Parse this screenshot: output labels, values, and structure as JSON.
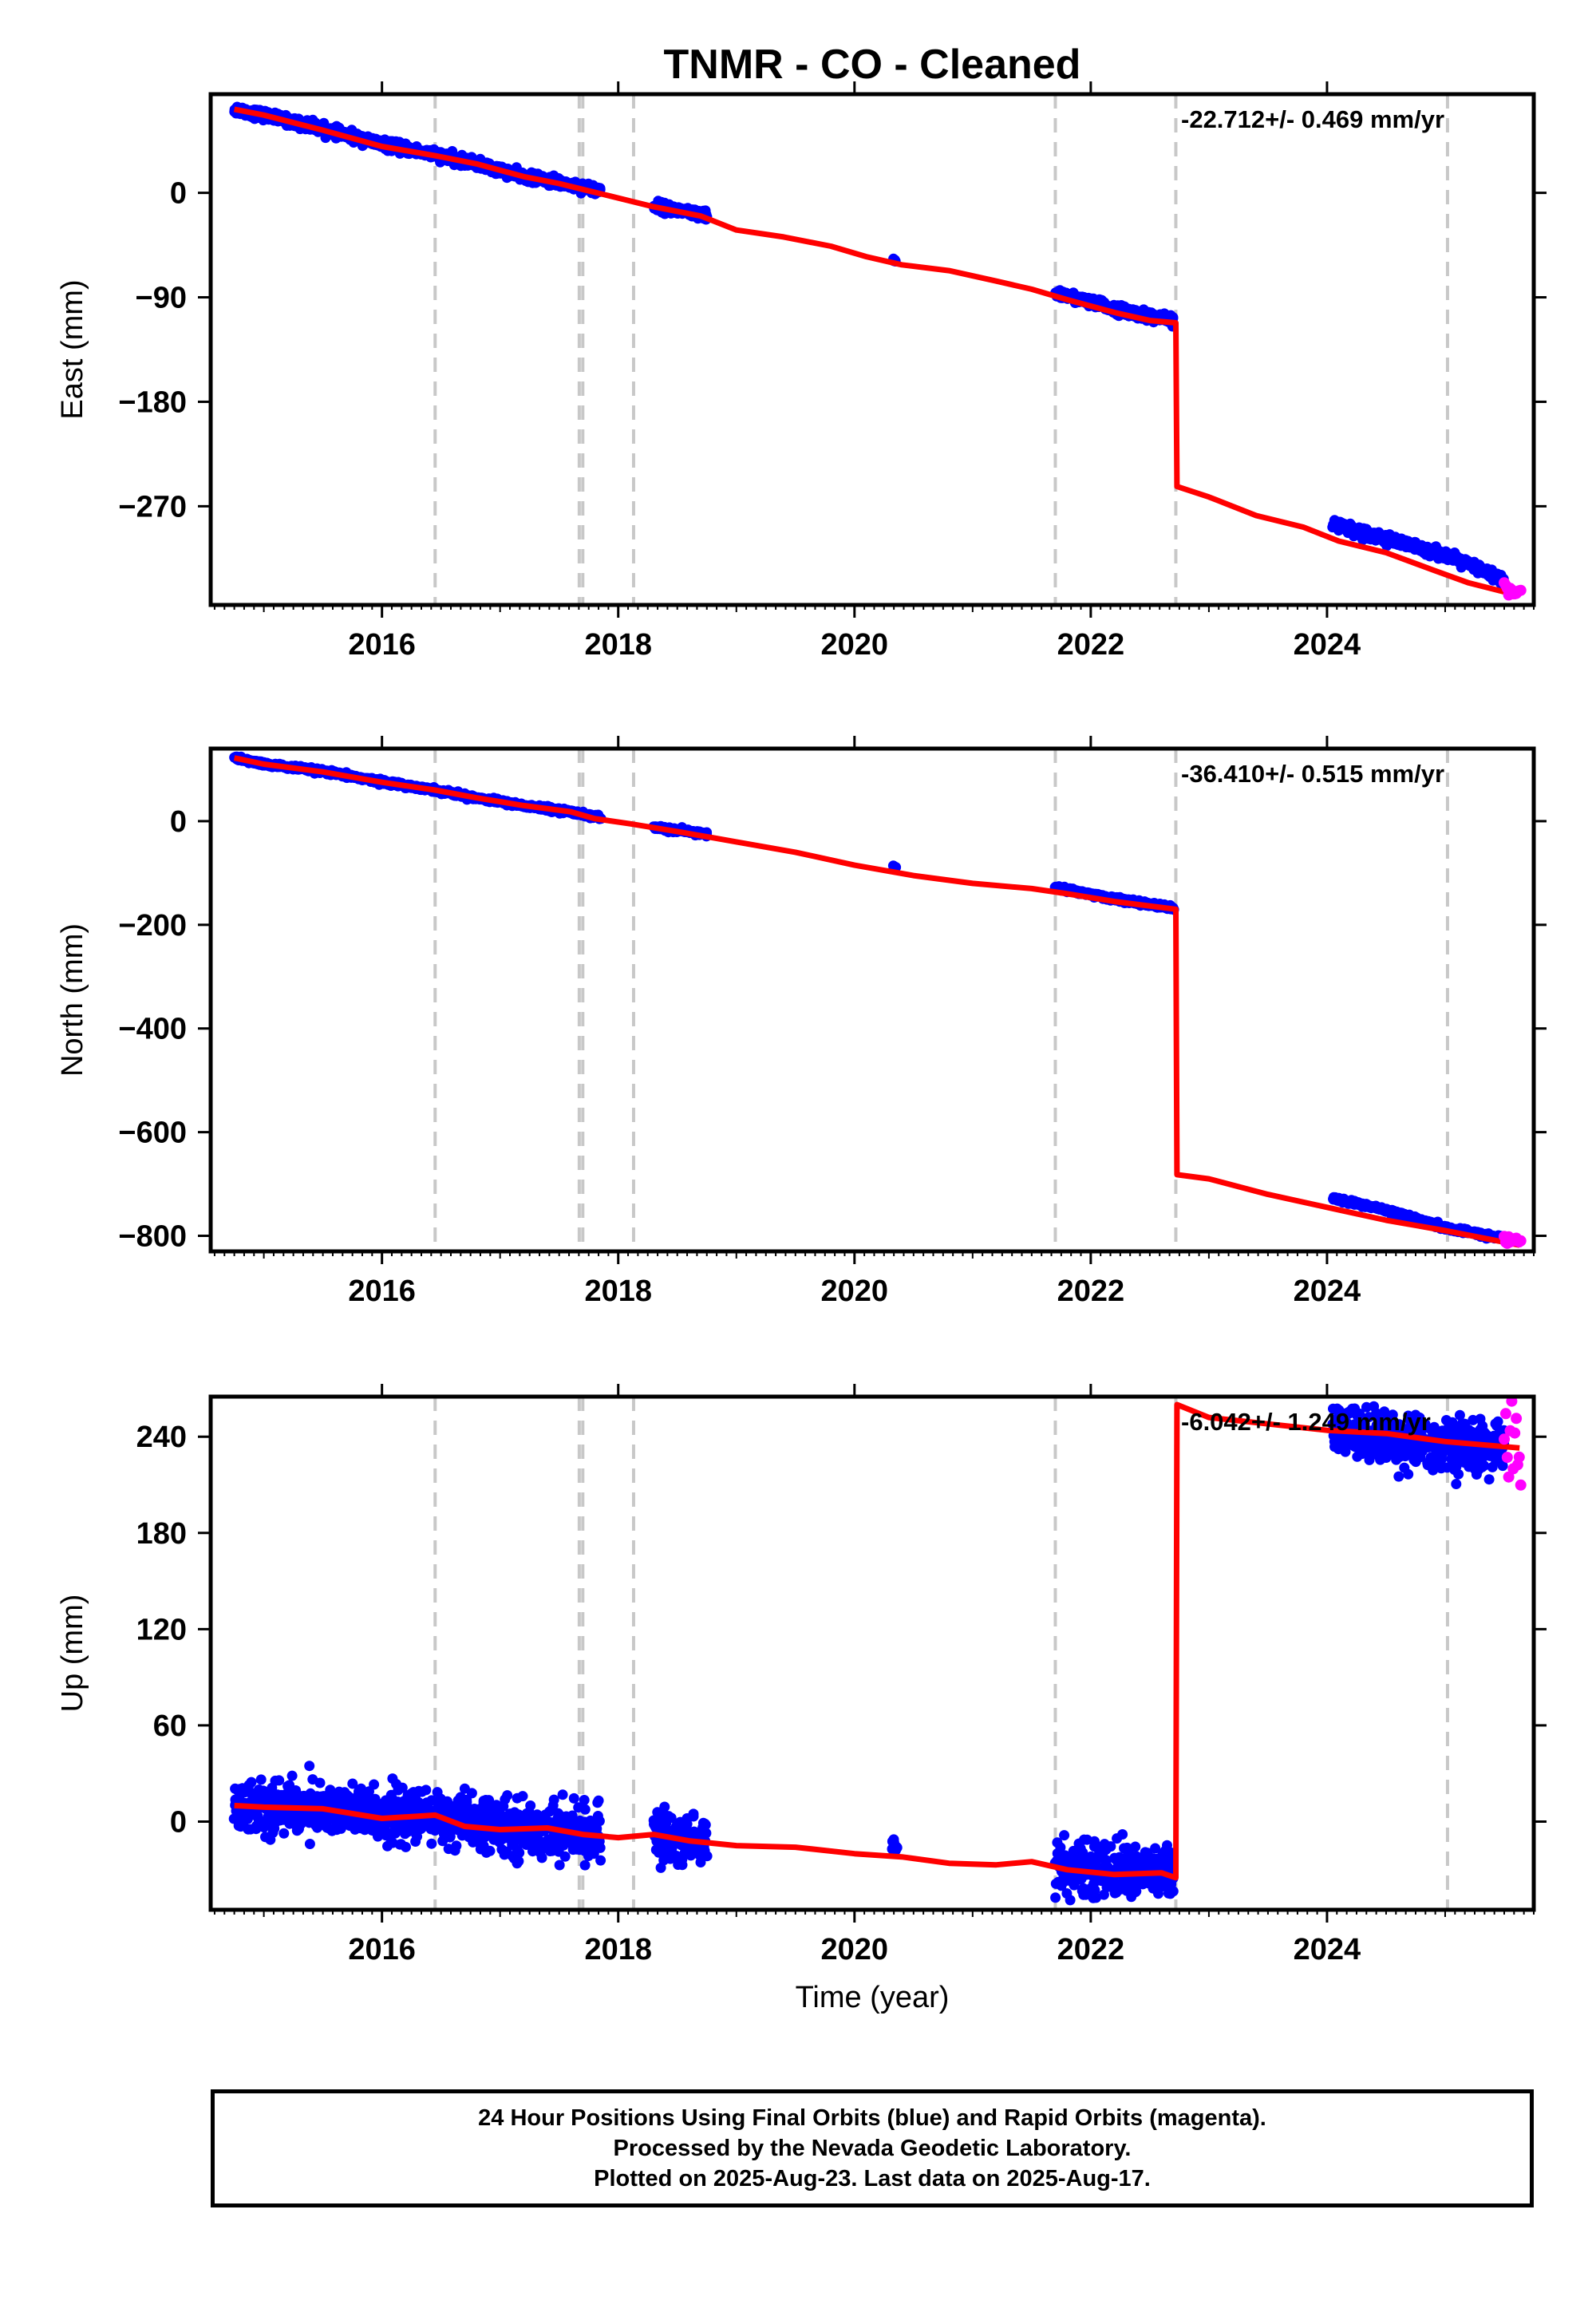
{
  "title": "TNMR  - CO - Cleaned",
  "colors": {
    "final": "#0000ff",
    "rapid": "#ff00ff",
    "model": "#ff0000",
    "breaks": "#c8c8c8",
    "frame": "#000000"
  },
  "x_axis": {
    "label": "Time (year)",
    "range": [
      2014.55,
      2025.75
    ],
    "tick_labels": [
      "2016",
      "2018",
      "2020",
      "2022",
      "2024"
    ]
  },
  "breaks": [
    2016.45,
    2017.67,
    2017.7,
    2018.13,
    2021.7,
    2022.72,
    2025.02
  ],
  "chart_data": [
    {
      "type": "scatter",
      "component": "east",
      "ylabel": "East (mm)",
      "rate_text": "-22.712+/- 0.469 mm/yr",
      "ylim": [
        -355,
        85
      ],
      "yticks": [
        0,
        -90,
        -180,
        -270
      ],
      "ytick_labels": [
        "0",
        "−90",
        "−180",
        "−270"
      ],
      "model": {
        "x": [
          2014.75,
          2015.0,
          2015.5,
          2016.0,
          2016.45,
          2016.8,
          2017.2,
          2017.5,
          2017.7,
          2017.9,
          2018.3,
          2018.7,
          2019.0,
          2019.4,
          2019.8,
          2020.1,
          2020.4,
          2020.8,
          2021.2,
          2021.5,
          2021.8,
          2022.2,
          2022.5,
          2022.72,
          2022.73,
          2023.0,
          2023.4,
          2023.8,
          2024.1,
          2024.5,
          2024.9,
          2025.2,
          2025.55
        ],
        "y": [
          72,
          67,
          54,
          40,
          32,
          25,
          14,
          8,
          3,
          -2,
          -12,
          -20,
          -32,
          -38,
          -46,
          -55,
          -62,
          -67,
          -76,
          -83,
          -92,
          -103,
          -110,
          -112,
          -253,
          -262,
          -278,
          -288,
          -300,
          -310,
          -325,
          -336,
          -345
        ]
      },
      "final": {
        "segments": [
          {
            "x": [
              2014.75,
              2015.0,
              2015.5,
              2016.0,
              2016.45,
              2016.8,
              2017.2,
              2017.5,
              2017.85
            ],
            "y": [
              72,
              67,
              55,
              42,
              33,
              25,
              14,
              9,
              2
            ],
            "scatter": 4
          },
          {
            "x": [
              2018.3,
              2018.75
            ],
            "y": [
              -11,
              -20
            ],
            "scatter": 4
          },
          {
            "x": [
              2020.33,
              2020.35
            ],
            "y": [
              -58,
              -59
            ],
            "scatter": 2
          },
          {
            "x": [
              2021.7,
              2022.2,
              2022.7
            ],
            "y": [
              -86,
              -100,
              -110
            ],
            "scatter": 4
          },
          {
            "x": [
              2024.05,
              2024.5,
              2025.0,
              2025.5
            ],
            "y": [
              -285,
              -298,
              -312,
              -333
            ],
            "scatter": 4
          }
        ]
      },
      "rapid": {
        "x": [
          2025.5,
          2025.64
        ],
        "y": [
          -338,
          -344
        ],
        "scatter": 6
      }
    },
    {
      "type": "scatter",
      "component": "north",
      "ylabel": "North (mm)",
      "rate_text": "-36.410+/- 0.515 mm/yr",
      "ylim": [
        -830,
        140
      ],
      "yticks": [
        0,
        -200,
        -400,
        -600,
        -800
      ],
      "ytick_labels": [
        "0",
        "−200",
        "−400",
        "−600",
        "−800"
      ],
      "model": {
        "x": [
          2014.75,
          2015.0,
          2015.5,
          2016.0,
          2016.45,
          2016.8,
          2017.2,
          2017.6,
          2017.8,
          2018.1,
          2018.5,
          2019.0,
          2019.5,
          2020.0,
          2020.5,
          2021.0,
          2021.5,
          2021.8,
          2022.2,
          2022.72,
          2022.73,
          2023.0,
          2023.5,
          2024.0,
          2024.5,
          2025.0,
          2025.63
        ],
        "y": [
          122,
          110,
          95,
          75,
          60,
          45,
          30,
          18,
          5,
          -5,
          -20,
          -40,
          -60,
          -85,
          -105,
          -120,
          -130,
          -140,
          -155,
          -170,
          -682,
          -690,
          -720,
          -745,
          -770,
          -790,
          -818
        ]
      },
      "final": {
        "segments": [
          {
            "x": [
              2014.75,
              2015.0,
              2015.5,
              2016.0,
              2016.45,
              2016.8,
              2017.2,
              2017.6,
              2017.85
            ],
            "y": [
              122,
              110,
              96,
              76,
              60,
              45,
              30,
              18,
              6
            ],
            "scatter": 4
          },
          {
            "x": [
              2018.3,
              2018.75
            ],
            "y": [
              -12,
              -25
            ],
            "scatter": 4
          },
          {
            "x": [
              2020.33,
              2020.35
            ],
            "y": [
              -88,
              -89
            ],
            "scatter": 3
          },
          {
            "x": [
              2021.7,
              2022.2,
              2022.7
            ],
            "y": [
              -128,
              -150,
              -168
            ],
            "scatter": 4
          },
          {
            "x": [
              2024.05,
              2024.5,
              2025.0,
              2025.5
            ],
            "y": [
              -728,
              -750,
              -785,
              -805
            ],
            "scatter": 4
          }
        ]
      },
      "rapid": {
        "x": [
          2025.5,
          2025.64
        ],
        "y": [
          -808,
          -810
        ],
        "scatter": 6
      }
    },
    {
      "type": "scatter",
      "component": "up",
      "ylabel": "Up (mm)",
      "rate_text": "-6.042+/- 1.249 mm/yr",
      "ylim": [
        -55,
        265
      ],
      "yticks": [
        240,
        180,
        120,
        60,
        0
      ],
      "ytick_labels": [
        "240",
        "180",
        "120",
        "60",
        "0"
      ],
      "model": {
        "x": [
          2014.75,
          2015.0,
          2015.5,
          2016.0,
          2016.45,
          2016.7,
          2017.0,
          2017.4,
          2017.7,
          2018.0,
          2018.3,
          2018.6,
          2019.0,
          2019.5,
          2020.0,
          2020.4,
          2020.8,
          2021.2,
          2021.5,
          2021.8,
          2022.2,
          2022.6,
          2022.72,
          2022.73,
          2023.0,
          2023.5,
          2024.0,
          2024.5,
          2025.0,
          2025.63
        ],
        "y": [
          10,
          9,
          8,
          2,
          4,
          -3,
          -5,
          -4,
          -8,
          -10,
          -8,
          -12,
          -15,
          -16,
          -20,
          -22,
          -26,
          -27,
          -25,
          -30,
          -33,
          -32,
          -35,
          260,
          252,
          248,
          244,
          242,
          237,
          233
        ]
      },
      "final": {
        "segments": [
          {
            "x": [
              2014.75,
              2015.5,
              2016.0,
              2016.45,
              2017.0,
              2017.5,
              2017.85
            ],
            "y": [
              10,
              8,
              3,
              3,
              -4,
              -5,
              -9
            ],
            "scatter": 16
          },
          {
            "x": [
              2018.3,
              2018.75
            ],
            "y": [
              -8,
              -12
            ],
            "scatter": 16
          },
          {
            "x": [
              2020.32,
              2020.36
            ],
            "y": [
              -14,
              -16
            ],
            "scatter": 6
          },
          {
            "x": [
              2021.7,
              2022.2,
              2022.7
            ],
            "y": [
              -28,
              -30,
              -33
            ],
            "scatter": 16
          },
          {
            "x": [
              2024.05,
              2024.5,
              2025.0,
              2025.5
            ],
            "y": [
              244,
              240,
              234,
              233
            ],
            "scatter": 16
          }
        ]
      },
      "rapid": {
        "x": [
          2025.5,
          2025.64
        ],
        "y": [
          235,
          233
        ],
        "scatter": 26
      }
    }
  ],
  "footer": {
    "line1": "24 Hour Positions Using Final Orbits (blue) and Rapid Orbits (magenta).",
    "line2": "Processed by the Nevada Geodetic Laboratory.",
    "line3": "Plotted on 2025-Aug-23. Last data on 2025-Aug-17."
  }
}
